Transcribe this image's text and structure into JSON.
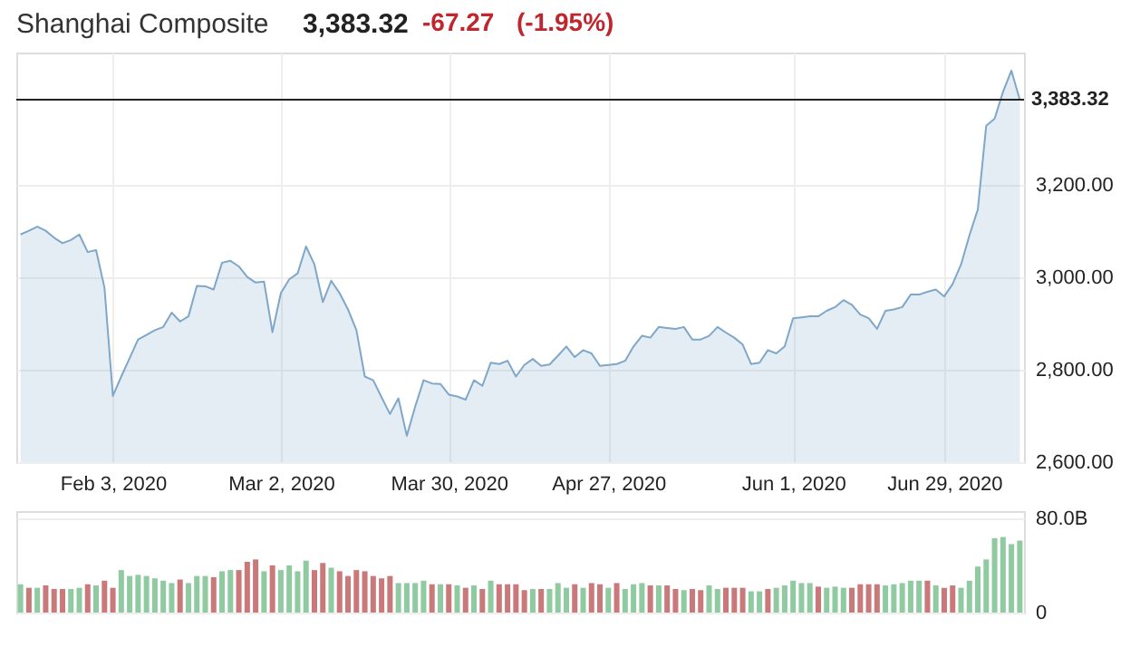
{
  "chart_data": [
    {
      "type": "area",
      "title": "Shanghai Composite",
      "annotations": [
        "3,383.32",
        "-67.27",
        "(-1.95%)"
      ],
      "categories": [
        null,
        null,
        null,
        null,
        null,
        null,
        null,
        null,
        null,
        null,
        null,
        "Feb 3, 2020",
        null,
        null,
        null,
        null,
        null,
        null,
        null,
        null,
        null,
        null,
        null,
        null,
        null,
        null,
        null,
        null,
        null,
        null,
        null,
        "Mar 2, 2020",
        null,
        null,
        null,
        null,
        null,
        null,
        null,
        null,
        null,
        null,
        null,
        null,
        null,
        null,
        null,
        null,
        null,
        null,
        null,
        "Mar 30, 2020",
        null,
        null,
        null,
        null,
        null,
        null,
        null,
        null,
        null,
        null,
        null,
        null,
        null,
        null,
        null,
        null,
        null,
        null,
        "Apr 27, 2020",
        null,
        null,
        null,
        null,
        null,
        null,
        null,
        null,
        null,
        null,
        null,
        null,
        null,
        null,
        null,
        null,
        null,
        null,
        null,
        null,
        null,
        "Jun 1, 2020",
        null,
        null,
        null,
        null,
        null,
        null,
        null,
        null,
        null,
        null,
        null,
        null,
        null,
        null,
        null,
        null,
        null,
        "Jun 29, 2020",
        null,
        null,
        null,
        null,
        null,
        null,
        null,
        null,
        null
      ],
      "series": [
        {
          "color": "#7fa7c9",
          "values": [
            3092,
            3100,
            3109,
            3100,
            3085,
            3073,
            3080,
            3092,
            3054,
            3058,
            2977,
            2743,
            2785,
            2825,
            2865,
            2875,
            2885,
            2892,
            2923,
            2904,
            2915,
            2981,
            2980,
            2973,
            3031,
            3035,
            3023,
            3000,
            2988,
            2990,
            2881,
            2965,
            2995,
            3008,
            3066,
            3027,
            2946,
            2992,
            2965,
            2930,
            2885,
            2785,
            2777,
            2740,
            2704,
            2738,
            2657,
            2720,
            2777,
            2770,
            2769,
            2746,
            2742,
            2735,
            2777,
            2765,
            2815,
            2812,
            2819,
            2785,
            2810,
            2823,
            2808,
            2811,
            2830,
            2850,
            2827,
            2842,
            2835,
            2808,
            2810,
            2812,
            2819,
            2850,
            2873,
            2869,
            2892,
            2890,
            2888,
            2892,
            2865,
            2865,
            2873,
            2892,
            2880,
            2869,
            2854,
            2812,
            2815,
            2842,
            2835,
            2850,
            2911,
            2913,
            2915,
            2915,
            2927,
            2935,
            2950,
            2940,
            2919,
            2911,
            2888,
            2927,
            2930,
            2935,
            2962,
            2962,
            2968,
            2973,
            2958,
            2985,
            3027,
            3090,
            3146,
            3327,
            3342,
            3400,
            3446,
            3383
          ]
        }
      ],
      "ylim": [
        2600,
        3485
      ],
      "yticks": [
        {
          "value": 2600,
          "label": "2,600.00"
        },
        {
          "value": 2800,
          "label": "2,800.00"
        },
        {
          "value": 3000,
          "label": "3,000.00"
        },
        {
          "value": 3200,
          "label": "3,200.00"
        }
      ],
      "ref_lines": [
        {
          "axis": "y",
          "value": 3383.32,
          "label": "3,383.32",
          "color": "#222222"
        }
      ],
      "grid": true
    },
    {
      "type": "bar",
      "categories": [
        null,
        null,
        null,
        null,
        null,
        null,
        null,
        null,
        null,
        null,
        null,
        null,
        null,
        null,
        null,
        null,
        null,
        null,
        null,
        null,
        null,
        null,
        null,
        null,
        null,
        null,
        null,
        null,
        null,
        null,
        null,
        null,
        null,
        null,
        null,
        null,
        null,
        null,
        null,
        null,
        null,
        null,
        null,
        null,
        null,
        null,
        null,
        null,
        null,
        null,
        null,
        null,
        null,
        null,
        null,
        null,
        null,
        null,
        null,
        null,
        null,
        null,
        null,
        null,
        null,
        null,
        null,
        null,
        null,
        null,
        null,
        null,
        null,
        null,
        null,
        null,
        null,
        null,
        null,
        null,
        null,
        null,
        null,
        null,
        null,
        null,
        null,
        null,
        null,
        null,
        null,
        null,
        null,
        null,
        null,
        null,
        null,
        null,
        null,
        null,
        null,
        null,
        null,
        null,
        null,
        null,
        null,
        null,
        null,
        null,
        null,
        null,
        null,
        null,
        null,
        null,
        null,
        null,
        null,
        null
      ],
      "values": [
        24,
        21,
        21,
        23,
        20,
        20,
        20,
        21,
        24,
        23,
        27,
        21,
        36,
        31,
        32,
        31,
        29,
        27,
        25,
        28,
        25,
        31,
        31,
        30,
        35,
        36,
        36,
        43,
        45,
        35,
        40,
        36,
        40,
        35,
        44,
        36,
        42,
        38,
        35,
        31,
        36,
        35,
        31,
        29,
        31,
        25,
        25,
        25,
        27,
        24,
        24,
        24,
        23,
        21,
        23,
        20,
        27,
        24,
        24,
        24,
        19,
        20,
        20,
        20,
        25,
        21,
        24,
        21,
        25,
        24,
        21,
        25,
        20,
        24,
        25,
        23,
        23,
        23,
        20,
        19,
        20,
        19,
        23,
        20,
        21,
        21,
        21,
        18,
        18,
        20,
        21,
        23,
        27,
        25,
        25,
        22,
        21,
        22,
        21,
        21,
        24,
        24,
        24,
        23,
        24,
        25,
        27,
        27,
        27,
        23,
        21,
        23,
        21,
        27,
        39,
        45,
        63,
        64,
        58,
        61
      ],
      "colors": [
        "#8fcaa0",
        "#c9797a",
        "#8fcaa0",
        "#c9797a",
        "#c9797a",
        "#c9797a",
        "#8fcaa0",
        "#8fcaa0",
        "#c9797a",
        "#8fcaa0",
        "#c9797a",
        "#c9797a",
        "#8fcaa0",
        "#8fcaa0",
        "#8fcaa0",
        "#8fcaa0",
        "#8fcaa0",
        "#8fcaa0",
        "#8fcaa0",
        "#c9797a",
        "#8fcaa0",
        "#8fcaa0",
        "#8fcaa0",
        "#c9797a",
        "#8fcaa0",
        "#8fcaa0",
        "#c9797a",
        "#c9797a",
        "#c9797a",
        "#8fcaa0",
        "#c9797a",
        "#8fcaa0",
        "#8fcaa0",
        "#8fcaa0",
        "#8fcaa0",
        "#c9797a",
        "#c9797a",
        "#8fcaa0",
        "#c9797a",
        "#c9797a",
        "#c9797a",
        "#c9797a",
        "#c9797a",
        "#c9797a",
        "#c9797a",
        "#8fcaa0",
        "#8fcaa0",
        "#8fcaa0",
        "#8fcaa0",
        "#c9797a",
        "#8fcaa0",
        "#c9797a",
        "#8fcaa0",
        "#c9797a",
        "#8fcaa0",
        "#c9797a",
        "#8fcaa0",
        "#c9797a",
        "#c9797a",
        "#c9797a",
        "#c9797a",
        "#8fcaa0",
        "#c9797a",
        "#8fcaa0",
        "#8fcaa0",
        "#8fcaa0",
        "#c9797a",
        "#8fcaa0",
        "#c9797a",
        "#c9797a",
        "#8fcaa0",
        "#c9797a",
        "#8fcaa0",
        "#8fcaa0",
        "#8fcaa0",
        "#c9797a",
        "#8fcaa0",
        "#c9797a",
        "#c9797a",
        "#8fcaa0",
        "#c9797a",
        "#c9797a",
        "#8fcaa0",
        "#8fcaa0",
        "#c9797a",
        "#c9797a",
        "#c9797a",
        "#8fcaa0",
        "#8fcaa0",
        "#c9797a",
        "#8fcaa0",
        "#8fcaa0",
        "#8fcaa0",
        "#8fcaa0",
        "#8fcaa0",
        "#c9797a",
        "#8fcaa0",
        "#8fcaa0",
        "#8fcaa0",
        "#c9797a",
        "#c9797a",
        "#c9797a",
        "#c9797a",
        "#8fcaa0",
        "#8fcaa0",
        "#8fcaa0",
        "#8fcaa0",
        "#8fcaa0",
        "#c9797a",
        "#8fcaa0",
        "#c9797a",
        "#c9797a",
        "#8fcaa0",
        "#8fcaa0",
        "#8fcaa0",
        "#8fcaa0",
        "#8fcaa0",
        "#8fcaa0",
        "#8fcaa0",
        "#8fcaa0"
      ],
      "ylim": [
        0,
        86
      ],
      "yticks": [
        0,
        {
          "value": 80,
          "label": "80.0B"
        }
      ],
      "tick_labels": "y",
      "grid": "y"
    }
  ]
}
